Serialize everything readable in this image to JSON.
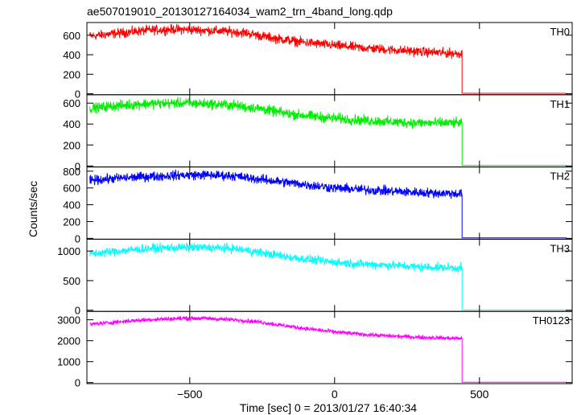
{
  "chart_data": {
    "type": "line",
    "title": "ae507019010_20130127164034_wam2_trn_4band_long.qdp",
    "xlabel": "Time [sec] 0 = 2013/01/27 16:40:34",
    "ylabel": "Counts/sec",
    "xlim": [
      -855,
      820
    ],
    "xticks": [
      -500,
      0,
      500
    ],
    "panels": [
      {
        "name": "TH0",
        "color": "#ff0000",
        "ylim": [
          -10,
          730
        ],
        "yticks": [
          0,
          200,
          400,
          600
        ],
        "x": [
          -845,
          -750,
          -650,
          -550,
          -450,
          -350,
          -300,
          -250,
          -200,
          -100,
          0,
          100,
          200,
          300,
          400,
          440,
          441,
          800
        ],
        "y": [
          590,
          620,
          650,
          660,
          650,
          635,
          620,
          590,
          565,
          525,
          495,
          470,
          450,
          430,
          415,
          410,
          5,
          5
        ],
        "noise": 30
      },
      {
        "name": "TH1",
        "color": "#00ee00",
        "ylim": [
          -10,
          680
        ],
        "yticks": [
          0,
          200,
          400,
          600
        ],
        "x": [
          -845,
          -750,
          -650,
          -550,
          -450,
          -350,
          -300,
          -250,
          -200,
          -100,
          0,
          100,
          200,
          300,
          400,
          440,
          441,
          800
        ],
        "y": [
          550,
          575,
          595,
          600,
          595,
          580,
          560,
          545,
          515,
          480,
          455,
          435,
          420,
          410,
          410,
          410,
          5,
          5
        ],
        "noise": 30
      },
      {
        "name": "TH2",
        "color": "#0000ff",
        "ylim": [
          -10,
          850
        ],
        "yticks": [
          0,
          200,
          400,
          600,
          800
        ],
        "x": [
          -845,
          -750,
          -650,
          -550,
          -450,
          -350,
          -300,
          -250,
          -200,
          -100,
          0,
          100,
          200,
          300,
          400,
          440,
          441,
          800
        ],
        "y": [
          690,
          715,
          735,
          750,
          755,
          745,
          720,
          700,
          680,
          640,
          600,
          580,
          560,
          545,
          535,
          530,
          5,
          5
        ],
        "noise": 35
      },
      {
        "name": "TH3",
        "color": "#00ffff",
        "ylim": [
          -20,
          1200
        ],
        "yticks": [
          0,
          500,
          1000
        ],
        "x": [
          -845,
          -750,
          -650,
          -550,
          -450,
          -350,
          -300,
          -250,
          -200,
          -100,
          0,
          100,
          200,
          300,
          400,
          440,
          441,
          800
        ],
        "y": [
          950,
          1000,
          1040,
          1060,
          1060,
          1040,
          1010,
          970,
          930,
          860,
          810,
          780,
          760,
          730,
          720,
          715,
          5,
          5
        ],
        "noise": 45
      },
      {
        "name": "TH0123",
        "color": "#ff00ff",
        "ylim": [
          -50,
          3400
        ],
        "yticks": [
          0,
          1000,
          2000,
          3000
        ],
        "x": [
          -845,
          -750,
          -650,
          -550,
          -450,
          -350,
          -300,
          -250,
          -200,
          -100,
          0,
          100,
          200,
          300,
          400,
          440,
          441,
          800
        ],
        "y": [
          2780,
          2900,
          3000,
          3060,
          3070,
          3000,
          2950,
          2880,
          2770,
          2580,
          2420,
          2300,
          2220,
          2160,
          2120,
          2110,
          20,
          20
        ],
        "noise": 60
      }
    ]
  }
}
